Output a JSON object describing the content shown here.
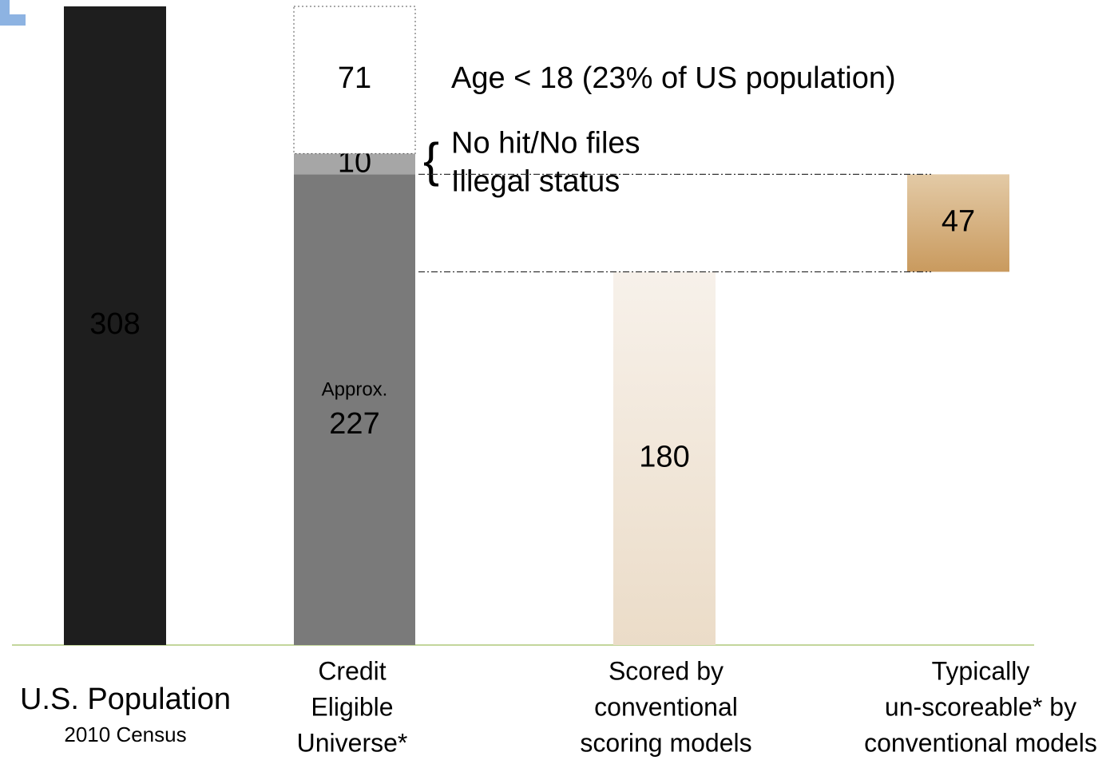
{
  "chart_data": {
    "type": "waterfall",
    "categories": [
      [
        "U.S. Population"
      ],
      [
        "Credit",
        "Eligible",
        "Universe*"
      ],
      [
        "Scored by",
        "conventional",
        "scoring models"
      ],
      [
        "Typically",
        "un-scoreable* by",
        "conventional models"
      ]
    ],
    "category_notes": [
      "2010 Census",
      null,
      null,
      null
    ],
    "bars": [
      {
        "segments": [
          {
            "value": 308,
            "color": "#1e1e1e",
            "label_color": "#ffffff"
          }
        ]
      },
      {
        "segments": [
          {
            "value": 227,
            "color": "#7a7a7a",
            "label_color": "#000000",
            "note": "Approx."
          },
          {
            "value": 10,
            "color": "#a6a6a6",
            "label_color": "#000000",
            "notes": [
              "No hit/No files",
              "Illegal status"
            ]
          },
          {
            "value": 71,
            "color": "#ffffff",
            "label_color": "#000000",
            "notes": [
              "Age < 18 (23% of US population)"
            ]
          }
        ]
      },
      {
        "segments": [
          {
            "value": 180,
            "color": "#efe5d8",
            "label_color": "#000000"
          }
        ]
      },
      {
        "segments": [
          {
            "value": 47,
            "color": "#d2b084",
            "label_color": "#000000"
          }
        ]
      }
    ]
  }
}
